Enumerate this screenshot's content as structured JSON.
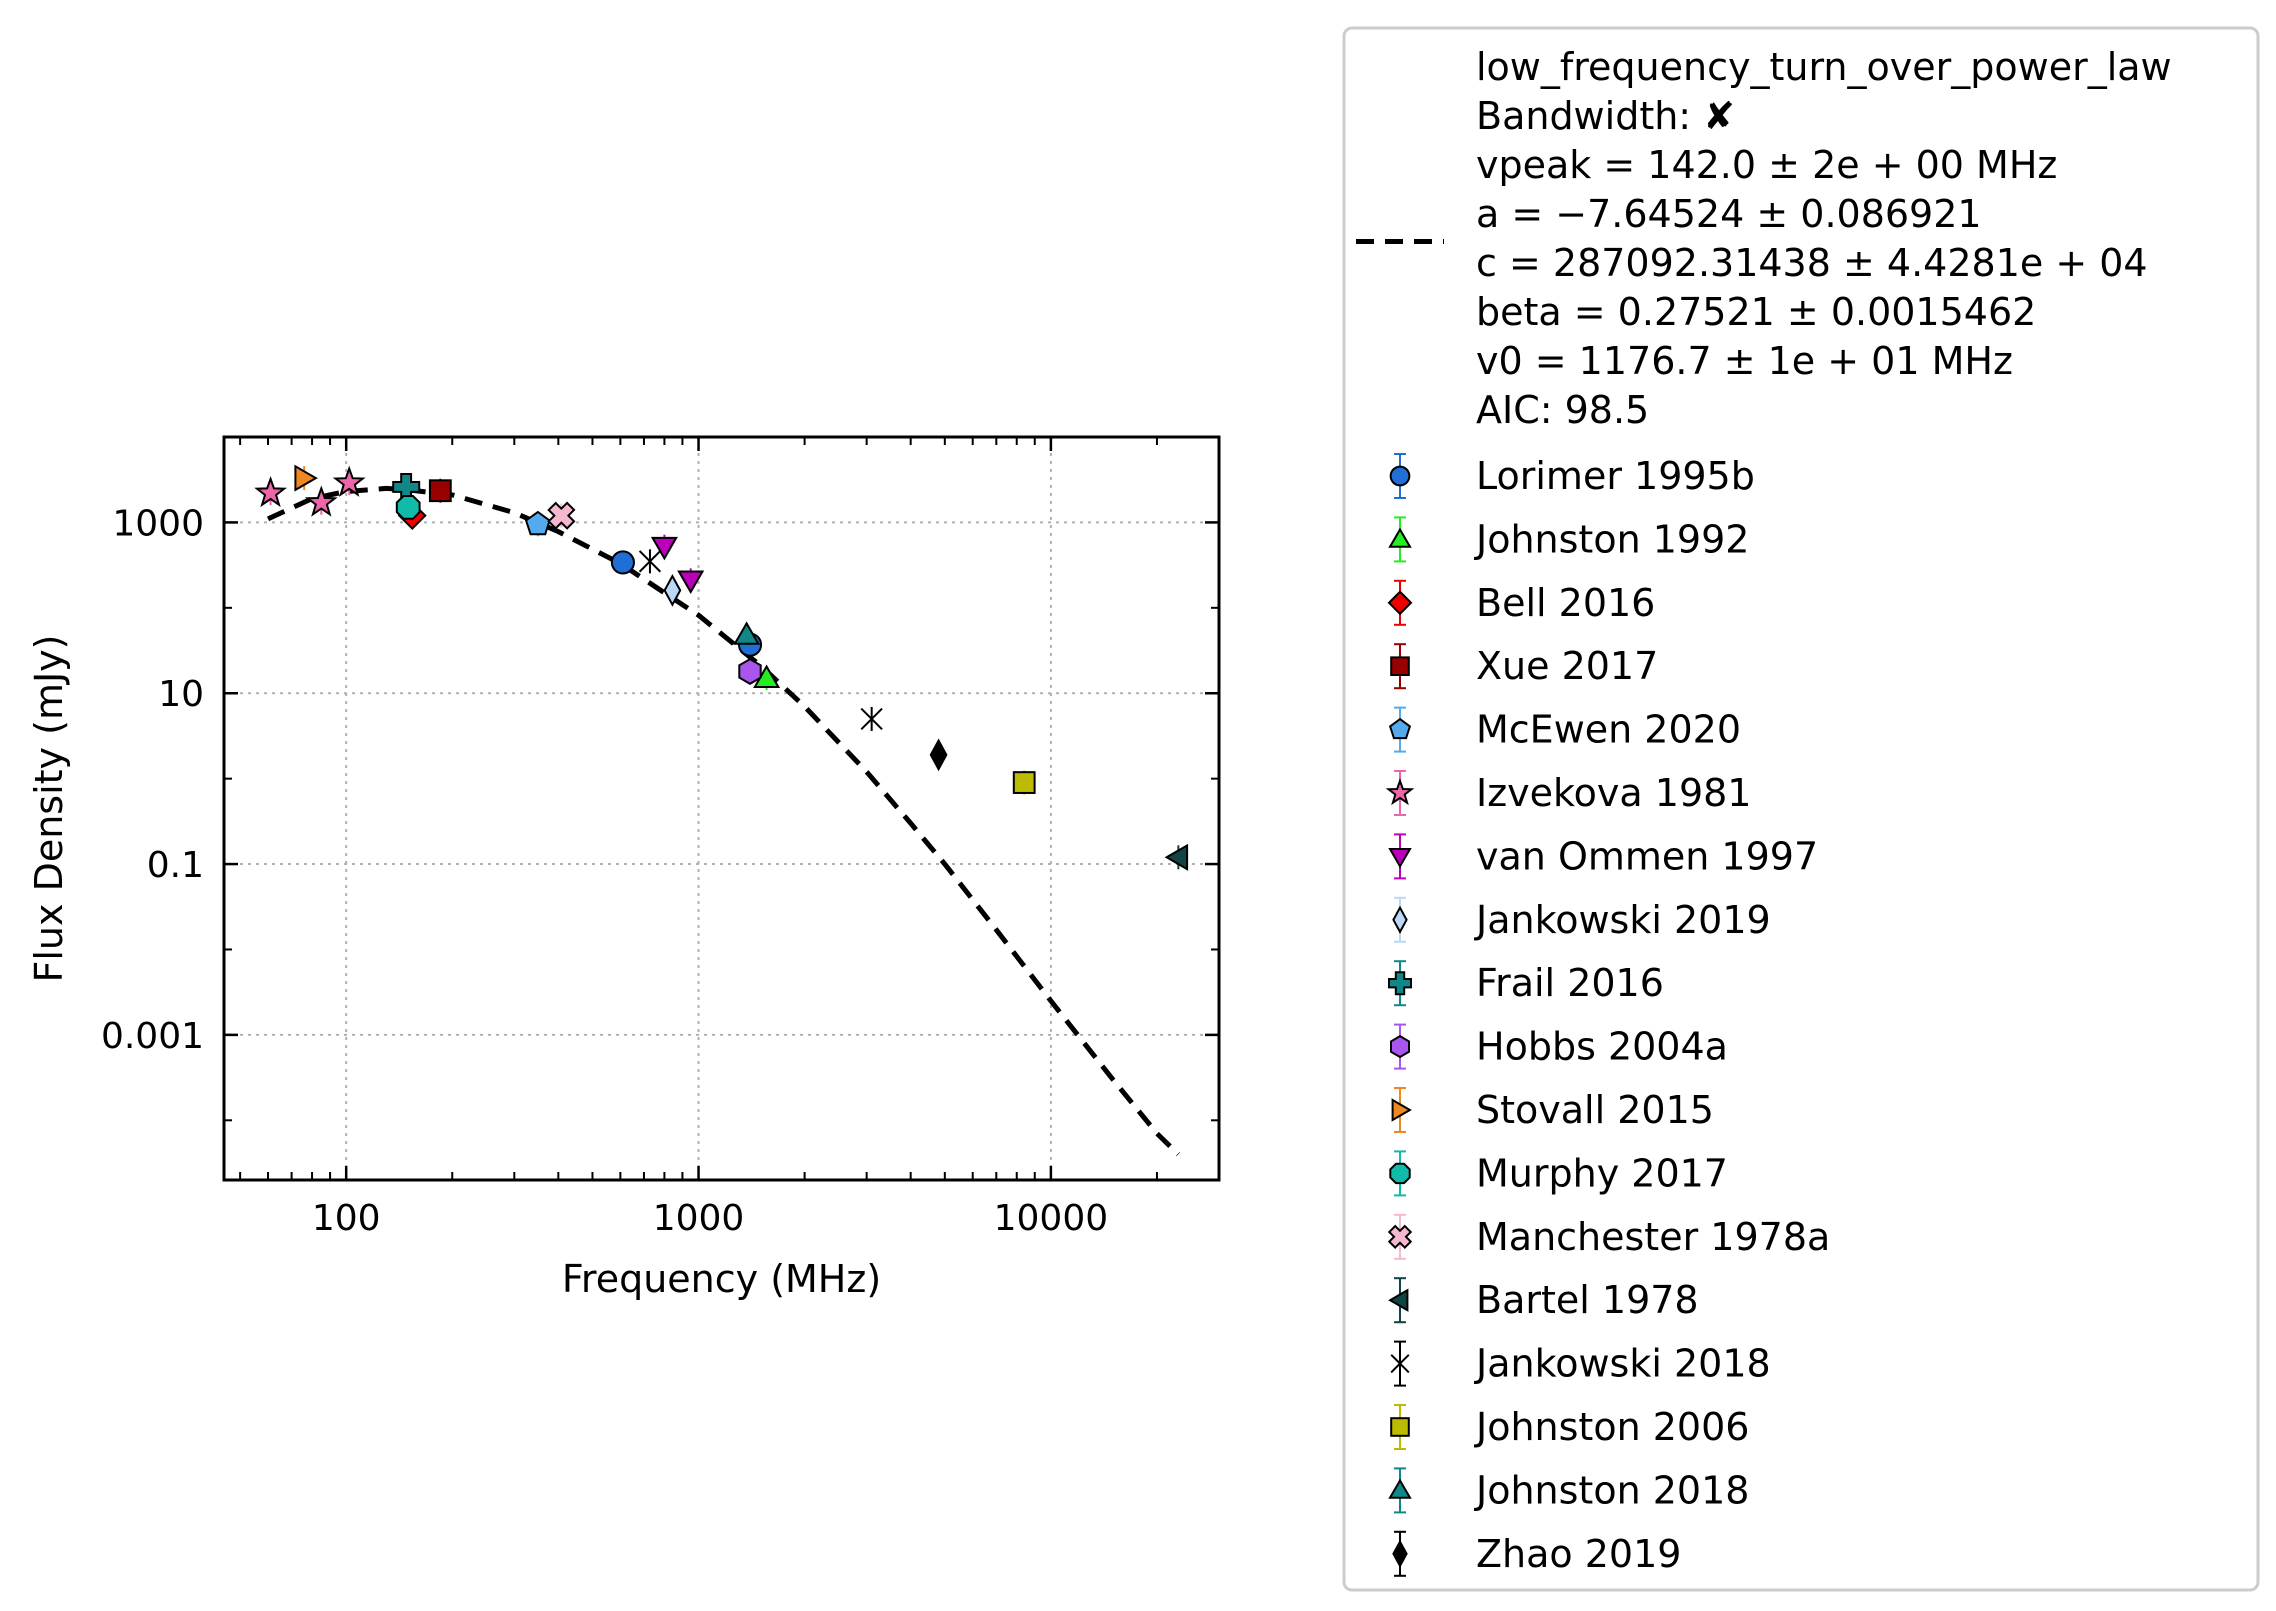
{
  "chart_data": {
    "type": "scatter",
    "xlabel": "Frequency (MHz)",
    "ylabel": "Flux Density (mJy)",
    "xscale": "log",
    "yscale": "log",
    "xlim": [
      45,
      30000
    ],
    "ylim": [
      2e-05,
      10000
    ],
    "xticks": [
      {
        "value": 100,
        "label": "100"
      },
      {
        "value": 1000,
        "label": "1000"
      },
      {
        "value": 10000,
        "label": "10000"
      }
    ],
    "yticks": [
      {
        "value": 1000,
        "label": "1000"
      },
      {
        "value": 10,
        "label": "10"
      },
      {
        "value": 0.1,
        "label": "0.1"
      },
      {
        "value": 0.001,
        "label": "0.001"
      }
    ],
    "grid": true,
    "legend_placement": "outside-right",
    "fit": {
      "label_lines": [
        "low_frequency_turn_over_power_law",
        "Bandwidth: ✘",
        "vpeak = 142.0 ± 2e + 00 MHz",
        "a = −7.64524 ± 0.086921",
        "c = 287092.31438 ± 4.4281e + 04",
        "beta = 0.27521 ± 0.0015462",
        "v0 = 1176.7 ± 1e + 01 MHz",
        "AIC: 98.5"
      ],
      "line_style": "dashed",
      "color": "#000000",
      "curve": [
        [
          60,
          1100
        ],
        [
          80,
          1900
        ],
        [
          100,
          2300
        ],
        [
          130,
          2500
        ],
        [
          150,
          2400
        ],
        [
          200,
          2100
        ],
        [
          300,
          1300
        ],
        [
          400,
          780
        ],
        [
          600,
          330
        ],
        [
          800,
          150
        ],
        [
          1000,
          82
        ],
        [
          1500,
          21
        ],
        [
          2000,
          7
        ],
        [
          3000,
          1.2
        ],
        [
          4000,
          0.3
        ],
        [
          5000,
          0.1
        ],
        [
          7000,
          0.017
        ],
        [
          10000,
          0.0025
        ],
        [
          15000,
          0.0003
        ],
        [
          20000,
          7e-05
        ],
        [
          23000,
          4e-05
        ]
      ]
    },
    "series": [
      {
        "name": "Lorimer 1995b",
        "marker": "circle",
        "color": "#1f6fd6",
        "points": [
          [
            610,
            340
          ],
          [
            1400,
            37
          ]
        ]
      },
      {
        "name": "Johnston 1992",
        "marker": "triangle-up",
        "color": "#22ee22",
        "points": [
          [
            1560,
            15
          ]
        ]
      },
      {
        "name": "Bell 2016",
        "marker": "diamond",
        "color": "#ee0000",
        "points": [
          [
            154,
            1200
          ]
        ]
      },
      {
        "name": "Xue 2017",
        "marker": "square",
        "color": "#990000",
        "points": [
          [
            185,
            2350
          ]
        ]
      },
      {
        "name": "McEwen 2020",
        "marker": "pentagon",
        "color": "#55aaee",
        "points": [
          [
            350,
            950
          ]
        ]
      },
      {
        "name": "Izvekova 1981",
        "marker": "star",
        "color": "#ee66aa",
        "points": [
          [
            61,
            2200
          ],
          [
            85,
            1700
          ],
          [
            102,
            2900
          ]
        ]
      },
      {
        "name": "van Ommen 1997",
        "marker": "triangle-down",
        "color": "#bb00bb",
        "points": [
          [
            800,
            520
          ],
          [
            950,
            210
          ]
        ]
      },
      {
        "name": "Jankowski 2019",
        "marker": "thin-diamond",
        "color": "#bbd9f5",
        "points": [
          [
            843,
            160
          ]
        ]
      },
      {
        "name": "Frail 2016",
        "marker": "plus",
        "color": "#118888",
        "points": [
          [
            148,
            2600
          ]
        ]
      },
      {
        "name": "Hobbs 2004a",
        "marker": "hexagon",
        "color": "#aa55ee",
        "points": [
          [
            1400,
            18
          ]
        ]
      },
      {
        "name": "Stovall 2015",
        "marker": "triangle-right",
        "color": "#ee8822",
        "points": [
          [
            76,
            3300
          ]
        ]
      },
      {
        "name": "Murphy 2017",
        "marker": "octagon",
        "color": "#11bbaa",
        "points": [
          [
            150,
            1500
          ]
        ]
      },
      {
        "name": "Manchester 1978a",
        "marker": "x-filled",
        "color": "#f5b8d0",
        "points": [
          [
            408,
            1200
          ]
        ]
      },
      {
        "name": "Bartel 1978",
        "marker": "triangle-left",
        "color": "#114444",
        "points": [
          [
            23000,
            0.12
          ]
        ]
      },
      {
        "name": "Jankowski 2018",
        "marker": "thin-x",
        "color": "#000000",
        "points": [
          [
            728,
            350
          ],
          [
            3100,
            5
          ]
        ]
      },
      {
        "name": "Johnston 2006",
        "marker": "square",
        "color": "#bbbb00",
        "points": [
          [
            8400,
            0.9
          ]
        ]
      },
      {
        "name": "Johnston 2018",
        "marker": "triangle-up",
        "color": "#118888",
        "points": [
          [
            1369,
            48
          ]
        ]
      },
      {
        "name": "Zhao 2019",
        "marker": "thin-diamond",
        "color": "#000000",
        "points": [
          [
            4800,
            1.9
          ]
        ]
      }
    ]
  }
}
